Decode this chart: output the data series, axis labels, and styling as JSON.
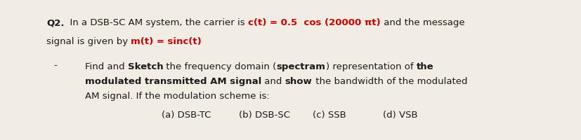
{
  "bg_color": "#f2ede4",
  "fig_width": 8.28,
  "fig_height": 2.01,
  "dpi": 100,
  "font_size": 9.5,
  "red_color": "#cc0000",
  "black_color": "#1a1a1a",
  "options": [
    "(a) DSB-TC",
    "(b) DSB-SC",
    "(c) SSB",
    "(d) VSB"
  ]
}
